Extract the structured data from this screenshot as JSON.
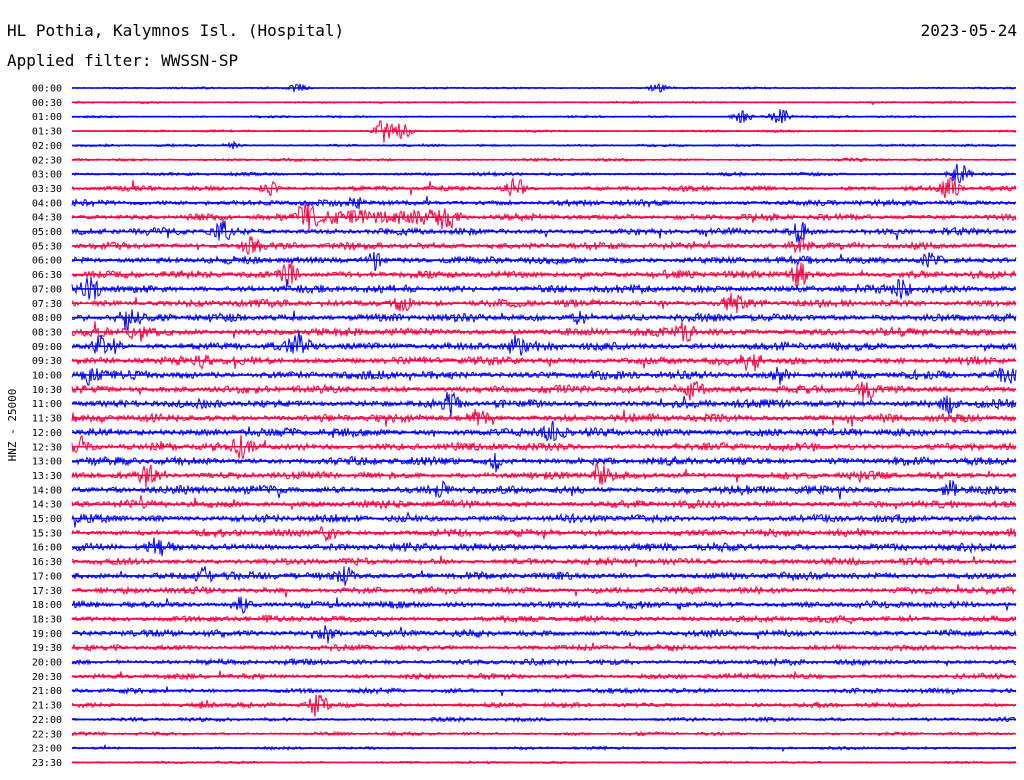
{
  "header": {
    "station": "HL Pothia, Kalymnos Isl. (Hospital)",
    "filter": "Applied filter: WWSSN-SP",
    "date": "2023-05-24"
  },
  "chart_data": {
    "type": "line",
    "title": "HL Pothia, Kalymnos Isl. (Hospital)",
    "subtitle": "Applied filter: WWSSN-SP",
    "date": "2023-05-24",
    "ylabel": "HNZ - 25000",
    "colors": [
      "#0000ff",
      "#ff0040"
    ],
    "rows": [
      {
        "time": "00:00",
        "activity": 0.05
      },
      {
        "time": "00:30",
        "activity": 0.05
      },
      {
        "time": "01:00",
        "activity": 0.08
      },
      {
        "time": "01:30",
        "activity": 0.08
      },
      {
        "time": "02:00",
        "activity": 0.1
      },
      {
        "time": "02:30",
        "activity": 0.15
      },
      {
        "time": "03:00",
        "activity": 0.2
      },
      {
        "time": "03:30",
        "activity": 0.35
      },
      {
        "time": "04:00",
        "activity": 0.45
      },
      {
        "time": "04:30",
        "activity": 0.5
      },
      {
        "time": "05:00",
        "activity": 0.55
      },
      {
        "time": "05:30",
        "activity": 0.55
      },
      {
        "time": "06:00",
        "activity": 0.6
      },
      {
        "time": "06:30",
        "activity": 0.6
      },
      {
        "time": "07:00",
        "activity": 0.65
      },
      {
        "time": "07:30",
        "activity": 0.6
      },
      {
        "time": "08:00",
        "activity": 0.65
      },
      {
        "time": "08:30",
        "activity": 0.65
      },
      {
        "time": "09:00",
        "activity": 0.7
      },
      {
        "time": "09:30",
        "activity": 0.65
      },
      {
        "time": "10:00",
        "activity": 0.7
      },
      {
        "time": "10:30",
        "activity": 0.65
      },
      {
        "time": "11:00",
        "activity": 0.7
      },
      {
        "time": "11:30",
        "activity": 0.65
      },
      {
        "time": "12:00",
        "activity": 0.7
      },
      {
        "time": "12:30",
        "activity": 0.65
      },
      {
        "time": "13:00",
        "activity": 0.65
      },
      {
        "time": "13:30",
        "activity": 0.6
      },
      {
        "time": "14:00",
        "activity": 0.7
      },
      {
        "time": "14:30",
        "activity": 0.6
      },
      {
        "time": "15:00",
        "activity": 0.65
      },
      {
        "time": "15:30",
        "activity": 0.6
      },
      {
        "time": "16:00",
        "activity": 0.65
      },
      {
        "time": "16:30",
        "activity": 0.55
      },
      {
        "time": "17:00",
        "activity": 0.6
      },
      {
        "time": "17:30",
        "activity": 0.55
      },
      {
        "time": "18:00",
        "activity": 0.55
      },
      {
        "time": "18:30",
        "activity": 0.5
      },
      {
        "time": "19:00",
        "activity": 0.55
      },
      {
        "time": "19:30",
        "activity": 0.45
      },
      {
        "time": "20:00",
        "activity": 0.45
      },
      {
        "time": "20:30",
        "activity": 0.4
      },
      {
        "time": "21:00",
        "activity": 0.35
      },
      {
        "time": "21:30",
        "activity": 0.35
      },
      {
        "time": "22:00",
        "activity": 0.25
      },
      {
        "time": "22:30",
        "activity": 0.2
      },
      {
        "time": "23:00",
        "activity": 0.15
      },
      {
        "time": "23:30",
        "activity": 0.1
      }
    ],
    "bursts": [
      {
        "row": 0,
        "x": 0.24,
        "amp": 0.4
      },
      {
        "row": 0,
        "x": 0.62,
        "amp": 0.35
      },
      {
        "row": 2,
        "x": 0.75,
        "amp": 0.9
      },
      {
        "row": 2,
        "x": 0.71,
        "amp": 0.5
      },
      {
        "row": 3,
        "x": 0.33,
        "amp": 1.0
      },
      {
        "row": 3,
        "x": 0.35,
        "amp": 0.7
      },
      {
        "row": 4,
        "x": 0.17,
        "amp": 0.3
      },
      {
        "row": 6,
        "x": 0.94,
        "amp": 1.0
      },
      {
        "row": 7,
        "x": 0.47,
        "amp": 0.9
      },
      {
        "row": 7,
        "x": 0.93,
        "amp": 0.9
      },
      {
        "row": 7,
        "x": 0.21,
        "amp": 0.6
      },
      {
        "row": 8,
        "x": 0.3,
        "amp": 0.5
      },
      {
        "row": 9,
        "x": 0.25,
        "amp": 0.6
      },
      {
        "row": 9,
        "x": 0.4,
        "amp": 0.8
      },
      {
        "row": 10,
        "x": 0.16,
        "amp": 0.8
      },
      {
        "row": 10,
        "x": 0.77,
        "amp": 0.9
      },
      {
        "row": 11,
        "x": 0.19,
        "amp": 0.8
      },
      {
        "row": 11,
        "x": 0.77,
        "amp": 0.7
      },
      {
        "row": 12,
        "x": 0.32,
        "amp": 0.9
      },
      {
        "row": 12,
        "x": 0.91,
        "amp": 0.8
      },
      {
        "row": 13,
        "x": 0.23,
        "amp": 1.0
      },
      {
        "row": 13,
        "x": 0.77,
        "amp": 1.0
      },
      {
        "row": 14,
        "x": 0.02,
        "amp": 0.9
      },
      {
        "row": 14,
        "x": 0.88,
        "amp": 0.9
      },
      {
        "row": 15,
        "x": 0.35,
        "amp": 0.7
      },
      {
        "row": 15,
        "x": 0.7,
        "amp": 0.8
      },
      {
        "row": 16,
        "x": 0.06,
        "amp": 1.0
      },
      {
        "row": 16,
        "x": 0.54,
        "amp": 0.7
      },
      {
        "row": 17,
        "x": 0.07,
        "amp": 1.0
      },
      {
        "row": 17,
        "x": 0.65,
        "amp": 0.8
      },
      {
        "row": 18,
        "x": 0.03,
        "amp": 0.9
      },
      {
        "row": 18,
        "x": 0.24,
        "amp": 1.0
      },
      {
        "row": 18,
        "x": 0.47,
        "amp": 0.7
      },
      {
        "row": 19,
        "x": 0.72,
        "amp": 0.9
      },
      {
        "row": 19,
        "x": 0.14,
        "amp": 0.5
      },
      {
        "row": 20,
        "x": 0.02,
        "amp": 0.8
      },
      {
        "row": 20,
        "x": 0.75,
        "amp": 0.8
      },
      {
        "row": 20,
        "x": 0.99,
        "amp": 0.7
      },
      {
        "row": 21,
        "x": 0.66,
        "amp": 1.0
      },
      {
        "row": 21,
        "x": 0.84,
        "amp": 0.8
      },
      {
        "row": 22,
        "x": 0.4,
        "amp": 0.8
      },
      {
        "row": 22,
        "x": 0.93,
        "amp": 0.7
      },
      {
        "row": 23,
        "x": 0.43,
        "amp": 0.7
      },
      {
        "row": 24,
        "x": 0.51,
        "amp": 0.9
      },
      {
        "row": 25,
        "x": 0.01,
        "amp": 0.8
      },
      {
        "row": 25,
        "x": 0.18,
        "amp": 0.8
      },
      {
        "row": 26,
        "x": 0.45,
        "amp": 0.5
      },
      {
        "row": 27,
        "x": 0.08,
        "amp": 1.0
      },
      {
        "row": 27,
        "x": 0.56,
        "amp": 1.0
      },
      {
        "row": 28,
        "x": 0.93,
        "amp": 0.7
      },
      {
        "row": 28,
        "x": 0.39,
        "amp": 0.5
      },
      {
        "row": 31,
        "x": 0.27,
        "amp": 0.7
      },
      {
        "row": 32,
        "x": 0.09,
        "amp": 0.6
      },
      {
        "row": 34,
        "x": 0.14,
        "amp": 0.8
      },
      {
        "row": 34,
        "x": 0.29,
        "amp": 0.7
      },
      {
        "row": 36,
        "x": 0.18,
        "amp": 0.6
      },
      {
        "row": 38,
        "x": 0.27,
        "amp": 0.8
      },
      {
        "row": 43,
        "x": 0.26,
        "amp": 1.0
      },
      {
        "row": 43,
        "x": 0.14,
        "amp": 0.4
      }
    ],
    "long_event": {
      "row": 9,
      "x0": 0.24,
      "x1": 0.4,
      "amp": 0.9
    }
  }
}
